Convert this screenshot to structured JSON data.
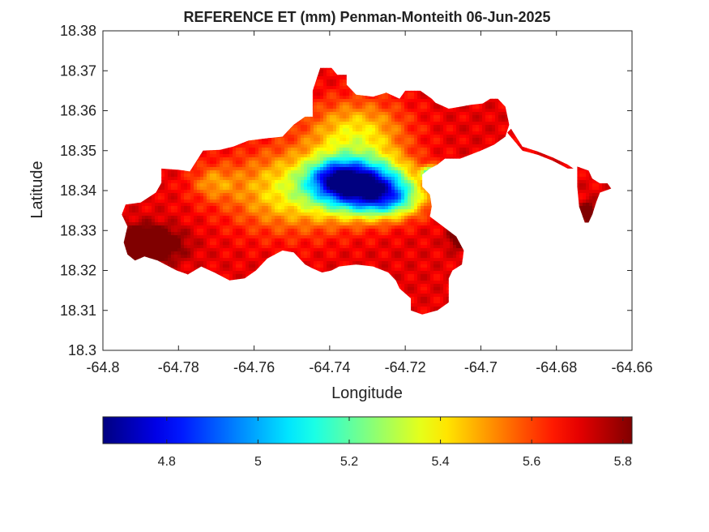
{
  "chart_data": {
    "type": "heatmap",
    "title": "REFERENCE ET (mm) Penman-Monteith 06-Jun-2025",
    "xlabel": "Longitude",
    "ylabel": "Latitude",
    "xlim": [
      -64.8,
      -64.66
    ],
    "ylim": [
      18.3,
      18.38
    ],
    "xticks": [
      -64.8,
      -64.78,
      -64.76,
      -64.74,
      -64.72,
      -64.7,
      -64.68,
      -64.66
    ],
    "xtick_labels": [
      "-64.8",
      "-64.78",
      "-64.76",
      "-64.74",
      "-64.72",
      "-64.7",
      "-64.68",
      "-64.66"
    ],
    "yticks": [
      18.3,
      18.31,
      18.32,
      18.33,
      18.34,
      18.35,
      18.36,
      18.37,
      18.38
    ],
    "ytick_labels": [
      "18.3",
      "18.31",
      "18.32",
      "18.33",
      "18.34",
      "18.35",
      "18.36",
      "18.37",
      "18.38"
    ],
    "colorbar": {
      "colormap": "jet",
      "clim": [
        4.66,
        5.82
      ],
      "ticks": [
        4.8,
        5.0,
        5.2,
        5.4,
        5.6,
        5.8
      ],
      "tick_labels": [
        "4.8",
        "5",
        "5.2",
        "5.4",
        "5.6",
        "5.8"
      ],
      "placement": "bottom"
    },
    "grid": false,
    "outline_main": [
      [
        -64.794,
        18.3365
      ],
      [
        -64.79,
        18.337
      ],
      [
        -64.786,
        18.3395
      ],
      [
        -64.7845,
        18.342
      ],
      [
        -64.7845,
        18.3455
      ],
      [
        -64.78,
        18.3452
      ],
      [
        -64.777,
        18.3448
      ],
      [
        -64.7735,
        18.35
      ],
      [
        -64.769,
        18.3502
      ],
      [
        -64.7655,
        18.351
      ],
      [
        -64.7615,
        18.3525
      ],
      [
        -64.7575,
        18.353
      ],
      [
        -64.7525,
        18.3535
      ],
      [
        -64.7495,
        18.3565
      ],
      [
        -64.7465,
        18.3585
      ],
      [
        -64.7445,
        18.3585
      ],
      [
        -64.7445,
        18.365
      ],
      [
        -64.7425,
        18.3707
      ],
      [
        -64.7395,
        18.3707
      ],
      [
        -64.738,
        18.369
      ],
      [
        -64.7355,
        18.369
      ],
      [
        -64.7355,
        18.3665
      ],
      [
        -64.733,
        18.364
      ],
      [
        -64.7285,
        18.3635
      ],
      [
        -64.725,
        18.3645
      ],
      [
        -64.7215,
        18.363
      ],
      [
        -64.72,
        18.365
      ],
      [
        -64.716,
        18.365
      ],
      [
        -64.713,
        18.363
      ],
      [
        -64.712,
        18.362
      ],
      [
        -64.7085,
        18.3605
      ],
      [
        -64.7055,
        18.361
      ],
      [
        -64.7025,
        18.3615
      ],
      [
        -64.6995,
        18.3618
      ],
      [
        -64.6975,
        18.363
      ],
      [
        -64.6955,
        18.363
      ],
      [
        -64.6935,
        18.361
      ],
      [
        -64.6925,
        18.3565
      ],
      [
        -64.6935,
        18.3535
      ],
      [
        -64.6965,
        18.3515
      ],
      [
        -64.7,
        18.35
      ],
      [
        -64.7055,
        18.348
      ],
      [
        -64.7095,
        18.348
      ],
      [
        -64.7115,
        18.3465
      ],
      [
        -64.7135,
        18.3455
      ],
      [
        -64.7155,
        18.344
      ],
      [
        -64.7155,
        18.341
      ],
      [
        -64.7135,
        18.339
      ],
      [
        -64.713,
        18.336
      ],
      [
        -64.7135,
        18.3335
      ],
      [
        -64.71,
        18.331
      ],
      [
        -64.7065,
        18.3285
      ],
      [
        -64.7045,
        18.325
      ],
      [
        -64.705,
        18.3215
      ],
      [
        -64.7075,
        18.32
      ],
      [
        -64.7085,
        18.318
      ],
      [
        -64.7085,
        18.312
      ],
      [
        -64.7115,
        18.31
      ],
      [
        -64.7155,
        18.309
      ],
      [
        -64.7185,
        18.31
      ],
      [
        -64.7185,
        18.313
      ],
      [
        -64.7215,
        18.3155
      ],
      [
        -64.7225,
        18.3175
      ],
      [
        -64.7245,
        18.3195
      ],
      [
        -64.7285,
        18.321
      ],
      [
        -64.733,
        18.3215
      ],
      [
        -64.7375,
        18.321
      ],
      [
        -64.7395,
        18.32
      ],
      [
        -64.742,
        18.3195
      ],
      [
        -64.7445,
        18.3205
      ],
      [
        -64.7465,
        18.3215
      ],
      [
        -64.7495,
        18.3245
      ],
      [
        -64.7525,
        18.325
      ],
      [
        -64.7565,
        18.323
      ],
      [
        -64.7595,
        18.32
      ],
      [
        -64.7625,
        18.318
      ],
      [
        -64.7665,
        18.3175
      ],
      [
        -64.7705,
        18.3195
      ],
      [
        -64.774,
        18.321
      ],
      [
        -64.7775,
        18.319
      ],
      [
        -64.7805,
        18.32
      ],
      [
        -64.7825,
        18.321
      ],
      [
        -64.7855,
        18.3225
      ],
      [
        -64.789,
        18.3235
      ],
      [
        -64.7915,
        18.3225
      ],
      [
        -64.7935,
        18.324
      ],
      [
        -64.7945,
        18.327
      ],
      [
        -64.7935,
        18.331
      ],
      [
        -64.795,
        18.334
      ],
      [
        -64.794,
        18.3365
      ]
    ],
    "outline_east": [
      [
        -64.6745,
        18.346
      ],
      [
        -64.6715,
        18.345
      ],
      [
        -64.6705,
        18.343
      ],
      [
        -64.6685,
        18.3418
      ],
      [
        -64.6665,
        18.3418
      ],
      [
        -64.6655,
        18.3405
      ],
      [
        -64.6685,
        18.3395
      ],
      [
        -64.6695,
        18.337
      ],
      [
        -64.6705,
        18.334
      ],
      [
        -64.6715,
        18.332
      ],
      [
        -64.6725,
        18.332
      ],
      [
        -64.674,
        18.336
      ],
      [
        -64.6745,
        18.341
      ],
      [
        -64.6745,
        18.346
      ]
    ],
    "outline_connector": [
      [
        -64.693,
        18.3545
      ],
      [
        -64.689,
        18.35
      ],
      [
        -64.685,
        18.349
      ],
      [
        -64.681,
        18.3475
      ],
      [
        -64.677,
        18.3455
      ],
      [
        -64.6755,
        18.3455
      ],
      [
        -64.677,
        18.3465
      ],
      [
        -64.681,
        18.3483
      ],
      [
        -64.685,
        18.3498
      ],
      [
        -64.689,
        18.351
      ],
      [
        -64.692,
        18.3555
      ],
      [
        -64.693,
        18.3545
      ]
    ],
    "values": [
      {
        "lon": -64.731,
        "lat": 18.341,
        "sigma_lon": 0.0085,
        "sigma_lat": 0.0045,
        "amp": -0.95
      },
      {
        "lon": -64.7385,
        "lat": 18.3435,
        "sigma_lon": 0.005,
        "sigma_lat": 0.003,
        "amp": -0.35
      },
      {
        "lon": -64.7235,
        "lat": 18.3375,
        "sigma_lon": 0.006,
        "sigma_lat": 0.003,
        "amp": -0.3
      },
      {
        "lon": -64.75,
        "lat": 18.34,
        "sigma_lon": 0.012,
        "sigma_lat": 0.007,
        "amp": -0.3
      },
      {
        "lon": -64.733,
        "lat": 18.354,
        "sigma_lon": 0.009,
        "sigma_lat": 0.006,
        "amp": -0.3
      },
      {
        "lon": -64.771,
        "lat": 18.342,
        "sigma_lon": 0.004,
        "sigma_lat": 0.003,
        "amp": -0.15
      },
      {
        "lon": -64.7885,
        "lat": 18.3265,
        "sigma_lon": 0.006,
        "sigma_lat": 0.003,
        "amp": 0.35
      },
      {
        "lon": -64.7055,
        "lat": 18.3285,
        "sigma_lon": 0.002,
        "sigma_lat": 0.002,
        "amp": 0.25
      },
      {
        "lon": -64.6715,
        "lat": 18.334,
        "sigma_lon": 0.0015,
        "sigma_lat": 0.002,
        "amp": 0.25
      },
      {
        "lon": -64.7135,
        "lat": 18.3445,
        "sigma_lon": 0.0015,
        "sigma_lat": 0.0012,
        "amp": -0.45
      }
    ],
    "base_value": 5.7
  }
}
